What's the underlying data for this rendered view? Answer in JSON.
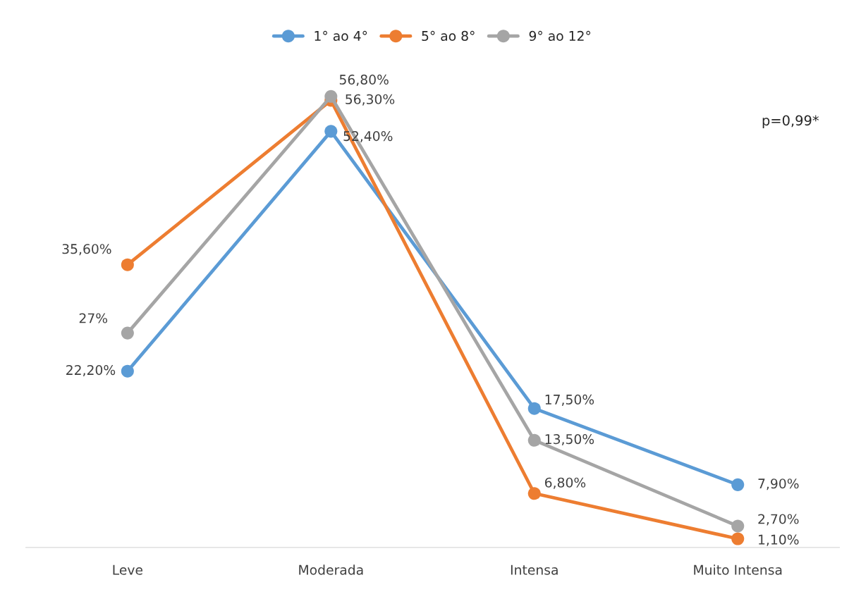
{
  "chart_data": {
    "type": "line",
    "categories": [
      "Leve",
      "Moderada",
      "Intensa",
      "Muito Intensa"
    ],
    "series": [
      {
        "name": "1° ao 4°",
        "color": "#5b9bd5",
        "values": [
          22.2,
          52.4,
          17.5,
          7.9
        ],
        "value_labels": [
          "22,20%",
          "52,40%",
          "17,50%",
          "7,90%"
        ]
      },
      {
        "name": "5° ao 8°",
        "color": "#ed7d31",
        "values": [
          35.6,
          56.3,
          6.8,
          1.1
        ],
        "value_labels": [
          "35,60%",
          "56,30%",
          "6,80%",
          "1,10%"
        ]
      },
      {
        "name": "9° ao 12°",
        "color": "#a5a5a5",
        "values": [
          27,
          56.8,
          13.5,
          2.7
        ],
        "value_labels": [
          "27%",
          "56,80%",
          "13,50%",
          "2,70%"
        ]
      }
    ],
    "tick_labels": "x",
    "grid": false,
    "legend": "top",
    "marker": "circle",
    "line_style": "solid",
    "annotations": [
      "p=0,99*"
    ]
  }
}
